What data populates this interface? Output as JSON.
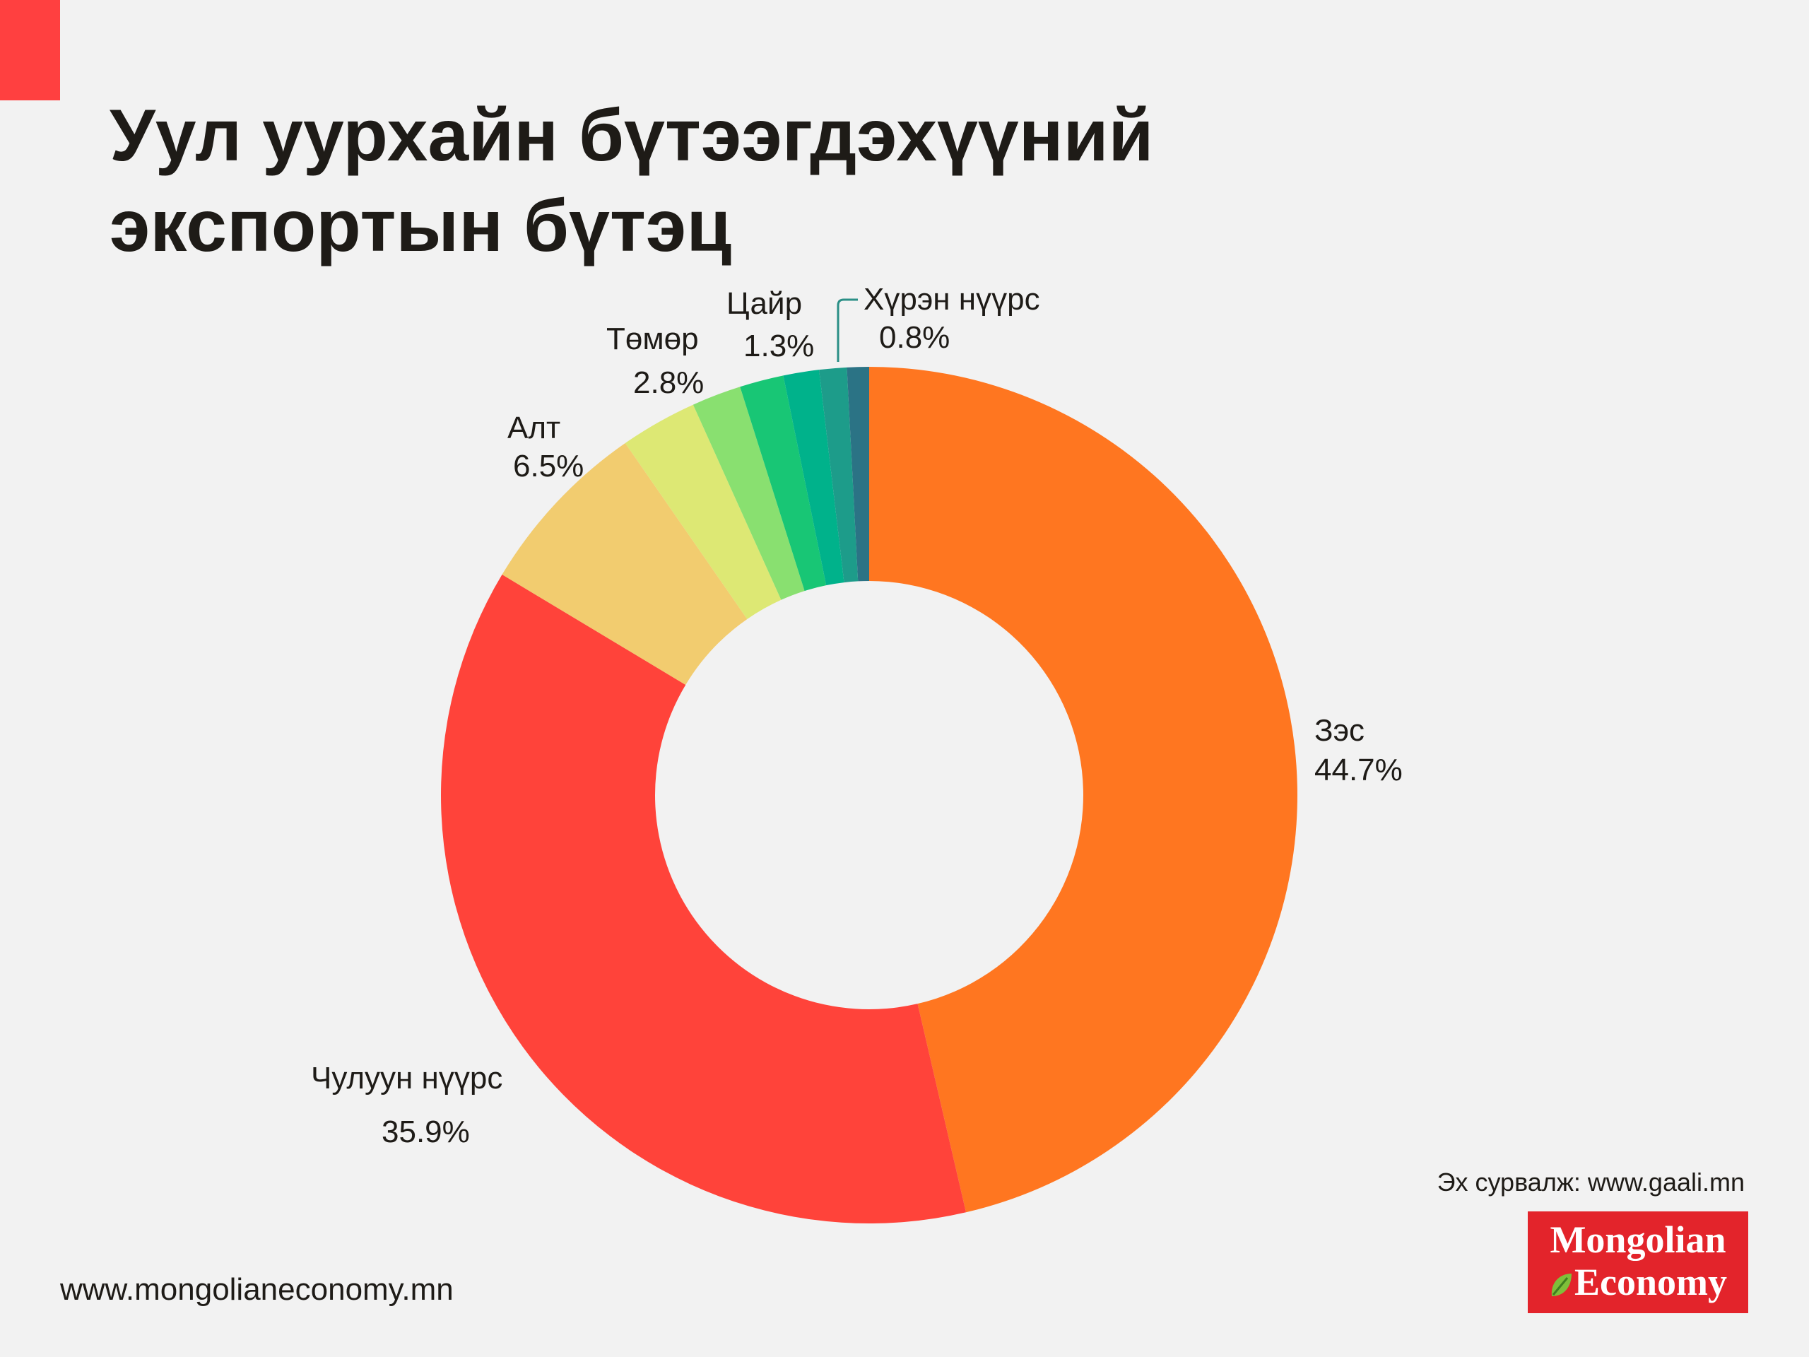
{
  "header": {
    "title_line1": "Уул уурхайн бүтээгдэхүүний",
    "title_line2": "экспортын бүтэц"
  },
  "colors": {
    "accent": "#ff4040",
    "background": "#f2f2f2",
    "logo_bg": "#e3242b"
  },
  "chart_data": {
    "type": "pie",
    "variant": "donut",
    "title": "Уул уурхайн бүтээгдэхүүний экспортын бүтэц",
    "unit": "%",
    "slices": [
      {
        "name": "Зэс",
        "value": 44.7,
        "label": "44.7%",
        "color": "#ff7620"
      },
      {
        "name": "Чулуун нүүрс",
        "value": 35.9,
        "label": "35.9%",
        "color": "#ff433a"
      },
      {
        "name": "Алт",
        "value": 6.5,
        "label": "6.5%",
        "color": "#f2cc6f"
      },
      {
        "name": "Төмөр",
        "value": 2.8,
        "label": "2.8%",
        "color": "#dde874"
      },
      {
        "name": "Unlabeled",
        "value": 1.8,
        "color": "#89e070"
      },
      {
        "name": "Unlabeled",
        "value": 1.6,
        "color": "#18c675"
      },
      {
        "name": "Цайр",
        "value": 1.3,
        "label": "1.3%",
        "color": "#00b28b"
      },
      {
        "name": "Unlabeled",
        "value": 1.0,
        "color": "#1d9c8a"
      },
      {
        "name": "Хүрэн нүүрс",
        "value": 0.8,
        "label": "0.8%",
        "color": "#2b7385"
      }
    ]
  },
  "source": {
    "text": "Эх сурвалж: www.gaali.mn"
  },
  "footer": {
    "url": "www.mongolianeconomy.mn"
  },
  "logo": {
    "line1": "Mongolian",
    "line2": "Economy",
    "icon": "leaf-icon"
  }
}
